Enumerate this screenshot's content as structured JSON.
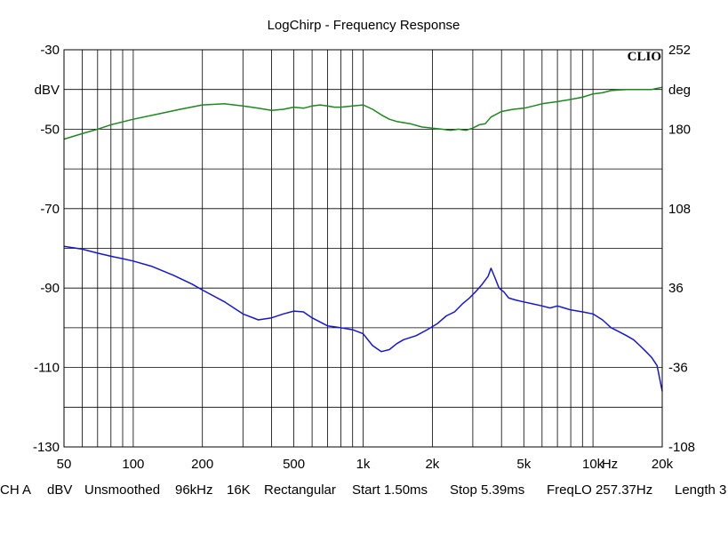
{
  "chart_data": {
    "type": "line",
    "title": "LogChirp - Frequency Response",
    "brand": "CLIO",
    "x_axis": {
      "scale": "log",
      "range": [
        50,
        20000
      ],
      "unit": "Hz",
      "ticks": [
        {
          "value": 50,
          "label": "50"
        },
        {
          "value": 100,
          "label": "100"
        },
        {
          "value": 200,
          "label": "200"
        },
        {
          "value": 500,
          "label": "500"
        },
        {
          "value": 1000,
          "label": "1k"
        },
        {
          "value": 2000,
          "label": "2k"
        },
        {
          "value": 5000,
          "label": "5k"
        },
        {
          "value": 10000,
          "label": "10k"
        },
        {
          "value": 20000,
          "label": "20k"
        }
      ]
    },
    "y_left": {
      "unit": "dBV",
      "range": [
        -130,
        -30
      ],
      "ticks": [
        {
          "value": -30,
          "label": "-30"
        },
        {
          "value": -50,
          "label": "-50"
        },
        {
          "value": -70,
          "label": "-70"
        },
        {
          "value": -90,
          "label": "-90"
        },
        {
          "value": -110,
          "label": "-110"
        },
        {
          "value": -130,
          "label": "-130"
        }
      ]
    },
    "y_right": {
      "unit": "deg",
      "range": [
        -108,
        252
      ],
      "ticks": [
        {
          "value": 252,
          "label": "252"
        },
        {
          "value": 180,
          "label": "180"
        },
        {
          "value": 108,
          "label": "108"
        },
        {
          "value": 36,
          "label": "36"
        },
        {
          "value": -36,
          "label": "-36"
        },
        {
          "value": -108,
          "label": "-108"
        }
      ]
    },
    "grid": true,
    "series": [
      {
        "axis": "right",
        "color": "#1a8a1a",
        "points": [
          [
            50,
            171
          ],
          [
            60,
            176
          ],
          [
            70,
            180
          ],
          [
            80,
            184
          ],
          [
            100,
            189
          ],
          [
            130,
            194
          ],
          [
            160,
            198
          ],
          [
            200,
            202
          ],
          [
            250,
            203
          ],
          [
            300,
            201
          ],
          [
            350,
            199
          ],
          [
            400,
            197
          ],
          [
            450,
            198
          ],
          [
            500,
            200
          ],
          [
            550,
            199
          ],
          [
            600,
            201
          ],
          [
            650,
            202
          ],
          [
            700,
            201
          ],
          [
            750,
            200
          ],
          [
            800,
            200
          ],
          [
            900,
            201
          ],
          [
            1000,
            202
          ],
          [
            1100,
            198
          ],
          [
            1200,
            193
          ],
          [
            1300,
            189
          ],
          [
            1400,
            187
          ],
          [
            1600,
            185
          ],
          [
            1800,
            182
          ],
          [
            2000,
            181
          ],
          [
            2200,
            180
          ],
          [
            2400,
            179
          ],
          [
            2600,
            180
          ],
          [
            2800,
            179
          ],
          [
            3000,
            181
          ],
          [
            3200,
            184
          ],
          [
            3400,
            185
          ],
          [
            3600,
            191
          ],
          [
            4000,
            196
          ],
          [
            4500,
            198
          ],
          [
            5000,
            199
          ],
          [
            5500,
            201
          ],
          [
            6000,
            203
          ],
          [
            7000,
            205
          ],
          [
            8000,
            207
          ],
          [
            9000,
            209
          ],
          [
            10000,
            212
          ],
          [
            11000,
            213
          ],
          [
            12000,
            215
          ],
          [
            14000,
            216
          ],
          [
            16000,
            216
          ],
          [
            18000,
            216
          ],
          [
            20000,
            218
          ]
        ]
      },
      {
        "axis": "left",
        "color": "#1515e0",
        "points": [
          [
            50,
            -79.5
          ],
          [
            60,
            -80.2
          ],
          [
            70,
            -81.2
          ],
          [
            80,
            -82
          ],
          [
            90,
            -82.6
          ],
          [
            100,
            -83.2
          ],
          [
            120,
            -84.5
          ],
          [
            150,
            -86.8
          ],
          [
            180,
            -89
          ],
          [
            200,
            -90.5
          ],
          [
            250,
            -93.5
          ],
          [
            300,
            -96.5
          ],
          [
            350,
            -98
          ],
          [
            400,
            -97.5
          ],
          [
            450,
            -96.5
          ],
          [
            500,
            -95.8
          ],
          [
            550,
            -96
          ],
          [
            600,
            -97.5
          ],
          [
            700,
            -99.5
          ],
          [
            800,
            -100
          ],
          [
            900,
            -100.5
          ],
          [
            1000,
            -101.5
          ],
          [
            1100,
            -104.5
          ],
          [
            1200,
            -106
          ],
          [
            1300,
            -105.5
          ],
          [
            1400,
            -104
          ],
          [
            1500,
            -103
          ],
          [
            1700,
            -102
          ],
          [
            1900,
            -100.5
          ],
          [
            2100,
            -99
          ],
          [
            2300,
            -97
          ],
          [
            2500,
            -96
          ],
          [
            2700,
            -94
          ],
          [
            2900,
            -92.5
          ],
          [
            3100,
            -90.8
          ],
          [
            3300,
            -89
          ],
          [
            3500,
            -87
          ],
          [
            3600,
            -85
          ],
          [
            3750,
            -87.5
          ],
          [
            3900,
            -90
          ],
          [
            4100,
            -91
          ],
          [
            4300,
            -92.5
          ],
          [
            4600,
            -93
          ],
          [
            5000,
            -93.5
          ],
          [
            5500,
            -94
          ],
          [
            6000,
            -94.5
          ],
          [
            6500,
            -95
          ],
          [
            7000,
            -94.5
          ],
          [
            7500,
            -95
          ],
          [
            8000,
            -95.5
          ],
          [
            9000,
            -96
          ],
          [
            10000,
            -96.5
          ],
          [
            11000,
            -98
          ],
          [
            12000,
            -100
          ],
          [
            13000,
            -101
          ],
          [
            14000,
            -102
          ],
          [
            15000,
            -103
          ],
          [
            16000,
            -104.5
          ],
          [
            17000,
            -106
          ],
          [
            18000,
            -107.5
          ],
          [
            19000,
            -109.5
          ],
          [
            20000,
            -116
          ]
        ]
      }
    ],
    "footer": [
      {
        "text": "CH A"
      },
      {
        "text": "dBV"
      },
      {
        "text": "Unsmoothed"
      },
      {
        "text": "96kHz"
      },
      {
        "text": "16K"
      },
      {
        "text": "Rectangular"
      },
      {
        "text": "Start 1.50ms"
      },
      {
        "text": "Stop 5.39ms"
      },
      {
        "text": "FreqLO 257.37Hz"
      },
      {
        "text": "Length 3"
      }
    ]
  }
}
